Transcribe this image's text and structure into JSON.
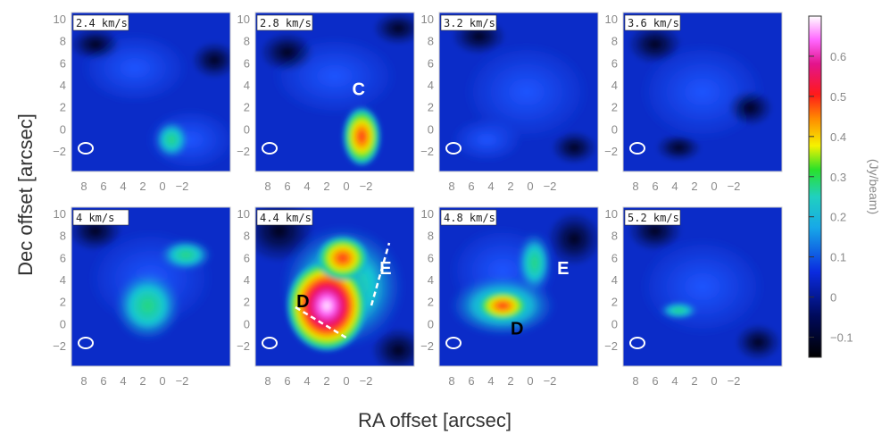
{
  "figure": {
    "xlabel": "RA offset [arcsec]",
    "ylabel": "Dec offset [arcsec]",
    "colorbar_label": "(Jy/beam)",
    "colorbar_ticks": [
      "0.6",
      "0.5",
      "0.4",
      "0.3",
      "0.2",
      "0.1",
      "0",
      "−0.1"
    ],
    "colorbar_range": [
      -0.15,
      0.7
    ],
    "ra_ticks": [
      "8",
      "6",
      "4",
      "2",
      "0",
      "−2"
    ],
    "dec_ticks": [
      "10",
      "8",
      "6",
      "4",
      "2",
      "0",
      "−2"
    ]
  },
  "panels": [
    {
      "velocity": "2.4 km/s",
      "markers": []
    },
    {
      "velocity": "2.8 km/s",
      "markers": [
        "C"
      ]
    },
    {
      "velocity": "3.2 km/s",
      "markers": []
    },
    {
      "velocity": "3.6 km/s",
      "markers": []
    },
    {
      "velocity": "4 km/s",
      "markers": []
    },
    {
      "velocity": "4.4 km/s",
      "markers": [
        "D",
        "E"
      ]
    },
    {
      "velocity": "4.8 km/s",
      "markers": [
        "E",
        "D"
      ]
    },
    {
      "velocity": "5.2 km/s",
      "markers": []
    }
  ],
  "colors": {
    "background_low": "#0a0a3c",
    "background_mid": "#0a2bd0",
    "emission_mid": "#17d1d1",
    "emission_high": "#ff2a2a",
    "emission_peak": "#ffffff"
  }
}
